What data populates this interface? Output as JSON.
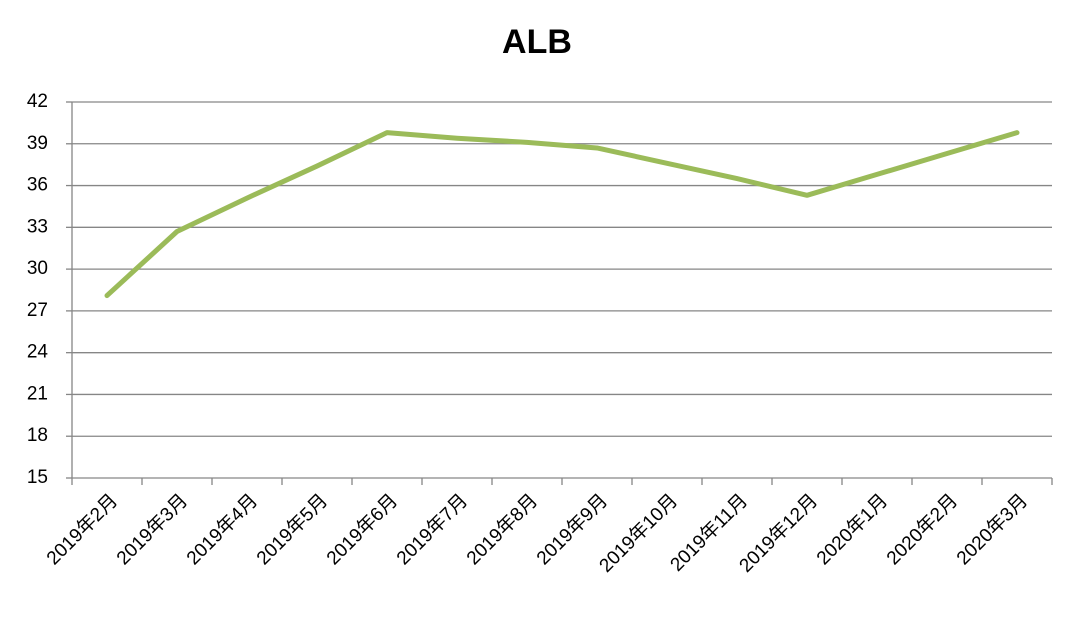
{
  "chart_data": {
    "type": "line",
    "title": "ALB",
    "categories": [
      "2019年2月",
      "2019年3月",
      "2019年4月",
      "2019年5月",
      "2019年6月",
      "2019年7月",
      "2019年8月",
      "2019年9月",
      "2019年10月",
      "2019年11月",
      "2019年12月",
      "2020年1月",
      "2020年2月",
      "2020年3月"
    ],
    "series": [
      {
        "name": "ALB",
        "color": "#9bbb59",
        "values": [
          28.1,
          32.7,
          35.1,
          37.4,
          39.8,
          39.4,
          39.1,
          38.7,
          37.6,
          36.5,
          35.3,
          36.8,
          38.3,
          39.8
        ]
      }
    ],
    "ylim": [
      15,
      42
    ],
    "yticks": [
      15,
      18,
      21,
      24,
      27,
      30,
      33,
      36,
      39,
      42
    ],
    "grid": true
  }
}
